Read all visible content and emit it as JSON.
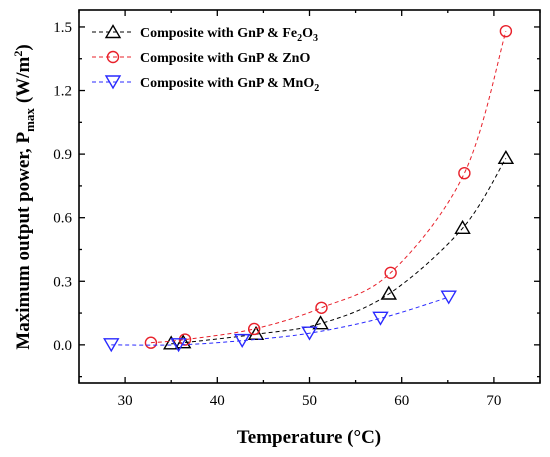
{
  "chart_data": {
    "type": "line",
    "xlabel": "Temperature (°C)",
    "ylabel_main": "Maximum output power, P",
    "ylabel_sub": "max",
    "ylabel_unit_pre": "(W/m",
    "ylabel_unit_sup": "2",
    "ylabel_unit_post": ")",
    "xlim": [
      25,
      75
    ],
    "ylim": [
      -0.18,
      1.58
    ],
    "xticks": [
      30,
      40,
      50,
      60,
      70
    ],
    "yticks": [
      0.0,
      0.3,
      0.6,
      0.9,
      1.2,
      1.5
    ],
    "ytick_labels": [
      "0.0",
      "0.3",
      "0.6",
      "0.9",
      "1.2",
      "1.5"
    ],
    "legend_position": "top-left",
    "grid": false,
    "series": [
      {
        "key": "fe2o3",
        "label_pre": "Composite with GnP & Fe",
        "label_sub1": "2",
        "label_mid": "O",
        "label_sub2": "3",
        "color": "#000000",
        "marker": "triangle-up",
        "x": [
          35.0,
          36.3,
          44.2,
          51.2,
          58.6,
          66.6,
          71.3
        ],
        "y": [
          0.005,
          0.01,
          0.05,
          0.1,
          0.24,
          0.55,
          0.88
        ]
      },
      {
        "key": "zno",
        "label_pre": "Composite with GnP & ZnO",
        "color": "#e8202a",
        "marker": "circle",
        "x": [
          32.8,
          36.5,
          44.0,
          51.3,
          58.8,
          66.8,
          71.3
        ],
        "y": [
          0.01,
          0.025,
          0.075,
          0.175,
          0.34,
          0.81,
          1.48
        ]
      },
      {
        "key": "mno2",
        "label_pre": "Composite with GnP & MnO",
        "label_sub1": "2",
        "color": "#2a2aff",
        "marker": "triangle-down",
        "x": [
          28.5,
          35.8,
          42.7,
          50.0,
          57.7,
          65.1
        ],
        "y": [
          0.0,
          0.0,
          0.02,
          0.055,
          0.125,
          0.225
        ]
      }
    ]
  }
}
